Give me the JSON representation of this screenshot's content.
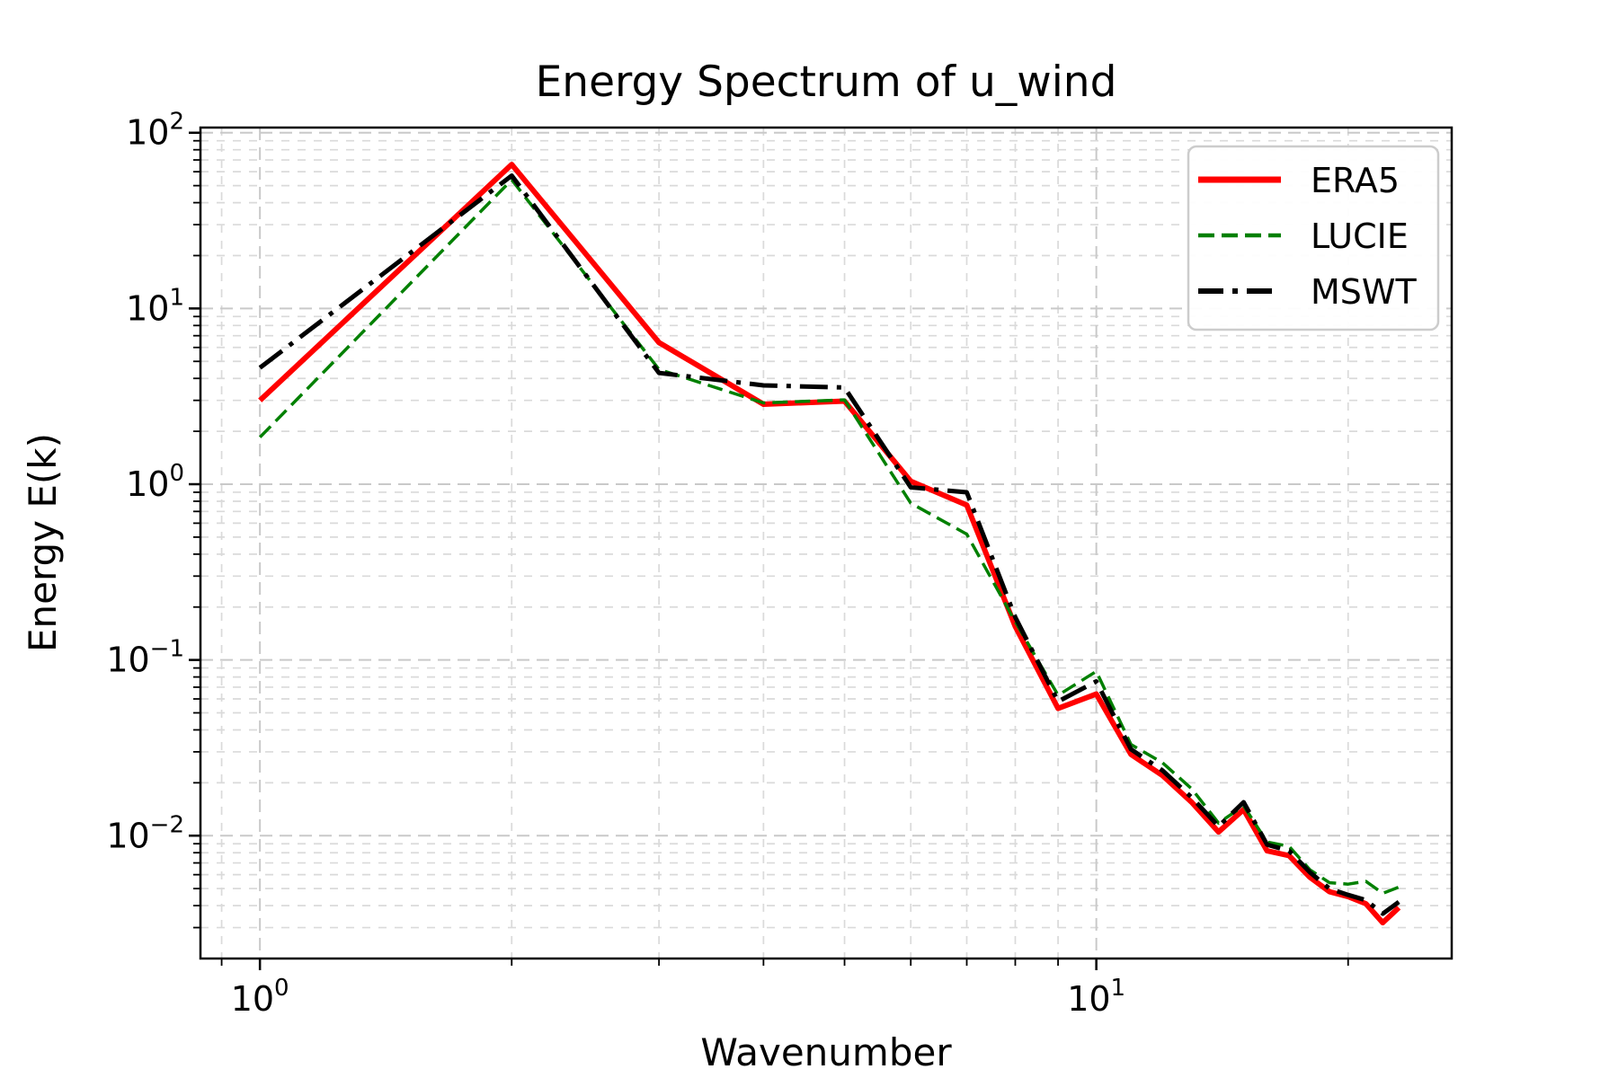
{
  "figure": {
    "background": "#ffffff",
    "plot_background": "#ffffff",
    "spine_color": "#000000",
    "grid_color_major": "#c9c9c9",
    "grid_color_minor": "#dadada"
  },
  "chart_data": {
    "type": "line",
    "title": "Energy Spectrum of u_wind",
    "xlabel": "Wavenumber",
    "ylabel": "Energy E(k)",
    "xscale": "log",
    "yscale": "log",
    "xlim": [
      0.849,
      26.6
    ],
    "ylim": [
      0.002,
      107
    ],
    "grid": true,
    "legend_position": "upper right",
    "x": [
      1,
      2,
      3,
      4,
      5,
      6,
      7,
      8,
      9,
      10,
      11,
      12,
      13,
      14,
      15,
      16,
      17,
      18,
      19,
      20,
      21,
      22,
      23
    ],
    "series": [
      {
        "name": "ERA5",
        "color": "#ff0000",
        "linestyle": "solid",
        "linewidth": 6,
        "values": [
          3.0,
          66,
          6.4,
          2.85,
          2.97,
          1.04,
          0.76,
          0.155,
          0.053,
          0.064,
          0.029,
          0.022,
          0.0155,
          0.0105,
          0.0141,
          0.0082,
          0.0077,
          0.0058,
          0.0048,
          0.0045,
          0.0041,
          0.0032,
          0.0039
        ]
      },
      {
        "name": "LUCIE",
        "color": "#008000",
        "linestyle": "dashed",
        "linewidth": 3.5,
        "values": [
          1.85,
          54,
          4.5,
          2.9,
          3.02,
          0.78,
          0.52,
          0.165,
          0.063,
          0.086,
          0.033,
          0.026,
          0.0185,
          0.0118,
          0.0148,
          0.0092,
          0.0087,
          0.0064,
          0.0054,
          0.0053,
          0.0055,
          0.0047,
          0.0051
        ]
      },
      {
        "name": "MSWT",
        "color": "#000000",
        "linestyle": "dashdot",
        "linewidth": 5,
        "values": [
          4.6,
          57,
          4.3,
          3.65,
          3.55,
          0.96,
          0.9,
          0.175,
          0.058,
          0.0755,
          0.031,
          0.0235,
          0.0165,
          0.0113,
          0.0155,
          0.0089,
          0.0082,
          0.0062,
          0.005,
          0.0046,
          0.0043,
          0.0036,
          0.0042
        ]
      }
    ],
    "x_ticks": [
      {
        "value": 1,
        "base": "10",
        "exponent": "0"
      },
      {
        "value": 10,
        "base": "10",
        "exponent": "1"
      }
    ],
    "y_ticks": [
      {
        "value": 100,
        "base": "10",
        "exponent": "2"
      },
      {
        "value": 10,
        "base": "10",
        "exponent": "1"
      },
      {
        "value": 1,
        "base": "10",
        "exponent": "0"
      },
      {
        "value": 0.1,
        "base": "10",
        "exponent": "−1"
      },
      {
        "value": 0.01,
        "base": "10",
        "exponent": "−2"
      }
    ]
  }
}
